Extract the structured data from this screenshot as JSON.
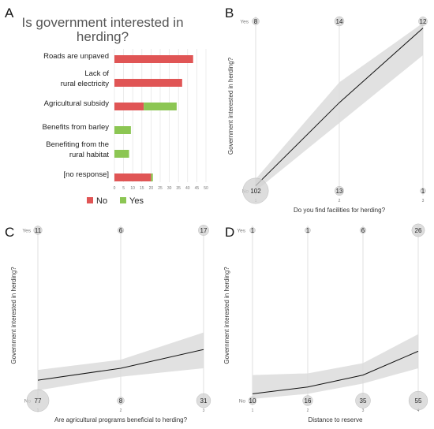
{
  "chart_data": [
    {
      "panel": "A",
      "type": "bar",
      "orientation": "horizontal",
      "stacked": true,
      "title": "Is government interested in herding?",
      "categories": [
        "Roads are unpaved",
        "Lack of rural electricity",
        "Agricultural subsidy",
        "Benefits from barley",
        "Benefiting from the rural habitat",
        "[no response]"
      ],
      "series": [
        {
          "name": "No",
          "color": "#e05555",
          "values": [
            43,
            37,
            16,
            0,
            0,
            20
          ]
        },
        {
          "name": "Yes",
          "color": "#8cc653",
          "values": [
            0,
            0,
            18,
            9,
            8,
            1
          ]
        }
      ],
      "xlim": [
        0,
        50
      ],
      "xticks": [
        0,
        5,
        10,
        15,
        20,
        25,
        30,
        35,
        40,
        45,
        50
      ],
      "grid": true,
      "legend": "bottom"
    },
    {
      "panel": "B",
      "type": "line",
      "xlabel": "Do you find facilities for herding?",
      "ylabel": "Government interested in herding?",
      "x_ticks": [
        1,
        2,
        3
      ],
      "y_ticks": [
        "No",
        "Yes"
      ],
      "fit": [
        [
          1,
          0.03
        ],
        [
          2,
          0.52
        ],
        [
          3,
          0.96
        ]
      ],
      "band": [
        [
          1,
          0.0,
          0.07
        ],
        [
          2,
          0.4,
          0.64
        ],
        [
          3,
          0.8,
          0.99
        ]
      ],
      "counts": [
        {
          "x": 1,
          "y": "No",
          "n": 102
        },
        {
          "x": 2,
          "y": "No",
          "n": 13
        },
        {
          "x": 3,
          "y": "No",
          "n": 1
        },
        {
          "x": 1,
          "y": "Yes",
          "n": 8
        },
        {
          "x": 2,
          "y": "Yes",
          "n": 14
        },
        {
          "x": 3,
          "y": "Yes",
          "n": 12
        }
      ]
    },
    {
      "panel": "C",
      "type": "line",
      "xlabel": "Are agricultural programs beneficial to herding?",
      "ylabel": "Government interested in herding?",
      "x_ticks": [
        1,
        2,
        3
      ],
      "y_ticks": [
        "No",
        "Yes"
      ],
      "fit": [
        [
          1,
          0.12
        ],
        [
          2,
          0.19
        ],
        [
          3,
          0.3
        ]
      ],
      "band": [
        [
          1,
          0.06,
          0.18
        ],
        [
          2,
          0.14,
          0.24
        ],
        [
          3,
          0.19,
          0.4
        ]
      ],
      "counts": [
        {
          "x": 1,
          "y": "No",
          "n": 77
        },
        {
          "x": 2,
          "y": "No",
          "n": 8
        },
        {
          "x": 3,
          "y": "No",
          "n": 31
        },
        {
          "x": 1,
          "y": "Yes",
          "n": 11
        },
        {
          "x": 2,
          "y": "Yes",
          "n": 6
        },
        {
          "x": 3,
          "y": "Yes",
          "n": 17
        }
      ]
    },
    {
      "panel": "D",
      "type": "line",
      "xlabel": "Distance to reserve",
      "ylabel": "Government interested in herding?",
      "x_ticks": [
        1,
        2,
        3,
        4
      ],
      "y_ticks": [
        "No",
        "Yes"
      ],
      "fit": [
        [
          1,
          0.04
        ],
        [
          2,
          0.08
        ],
        [
          3,
          0.15
        ],
        [
          4,
          0.29
        ]
      ],
      "band": [
        [
          1,
          0.01,
          0.15
        ],
        [
          2,
          0.04,
          0.16
        ],
        [
          3,
          0.1,
          0.22
        ],
        [
          4,
          0.19,
          0.39
        ]
      ],
      "counts": [
        {
          "x": 1,
          "y": "No",
          "n": 10
        },
        {
          "x": 2,
          "y": "No",
          "n": 16
        },
        {
          "x": 3,
          "y": "No",
          "n": 35
        },
        {
          "x": 4,
          "y": "No",
          "n": 55
        },
        {
          "x": 1,
          "y": "Yes",
          "n": 1
        },
        {
          "x": 2,
          "y": "Yes",
          "n": 1
        },
        {
          "x": 3,
          "y": "Yes",
          "n": 6
        },
        {
          "x": 4,
          "y": "Yes",
          "n": 26
        }
      ]
    }
  ]
}
